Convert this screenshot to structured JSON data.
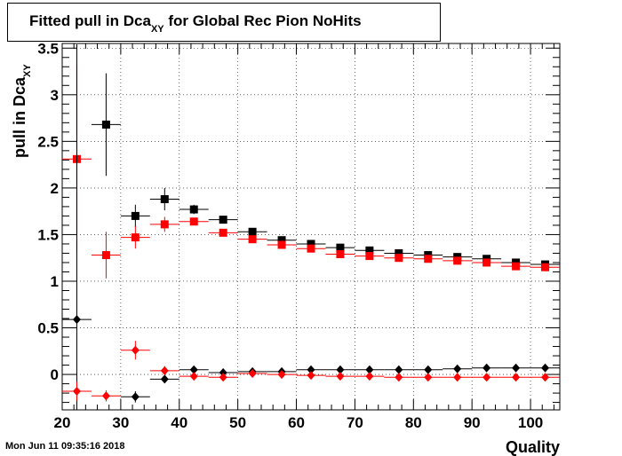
{
  "title": {
    "main": "Fitted pull in Dca",
    "sub": "XY",
    "rest": " for Global Rec Pion NoHits"
  },
  "timestamp": "Mon Jun 11 09:35:16 2018",
  "chart_data": {
    "type": "scatter",
    "title": "Fitted pull in Dca_XY for Global Rec Pion NoHits",
    "xlabel": "Quality",
    "ylabel_main": "pull in Dca",
    "ylabel_sub": "XY",
    "xlim": [
      20,
      105
    ],
    "ylim": [
      -0.38,
      3.55
    ],
    "x_ticks": [
      20,
      30,
      40,
      50,
      60,
      70,
      80,
      90,
      100
    ],
    "y_ticks": [
      0,
      0.5,
      1,
      1.5,
      2,
      2.5,
      3,
      3.5
    ],
    "y_tick_labels": [
      "0",
      "0.5",
      "1",
      "1.5",
      "2",
      "2.5",
      "3",
      "3.5"
    ],
    "grid": true,
    "bin_halfwidth": 2.5,
    "series": [
      {
        "color": "#000000",
        "marker": "square",
        "x": [
          27.5,
          32.5,
          37.5,
          42.5,
          47.5,
          52.5,
          57.5,
          62.5,
          67.5,
          72.5,
          77.5,
          82.5,
          87.5,
          92.5,
          97.5,
          102.5
        ],
        "y": [
          2.68,
          1.7,
          1.88,
          1.77,
          1.66,
          1.53,
          1.44,
          1.4,
          1.36,
          1.33,
          1.3,
          1.28,
          1.26,
          1.24,
          1.2,
          1.18
        ],
        "err": [
          0.55,
          0.12,
          0.12,
          0.05,
          0.04,
          0.03,
          0.03,
          0.02,
          0.02,
          0.02,
          0.02,
          0.02,
          0.02,
          0.02,
          0.02,
          0.02
        ]
      },
      {
        "color": "#ff0000",
        "marker": "square",
        "x": [
          22.5,
          27.5,
          32.5,
          37.5,
          42.5,
          47.5,
          52.5,
          57.5,
          62.5,
          67.5,
          72.5,
          77.5,
          82.5,
          87.5,
          92.5,
          97.5,
          102.5
        ],
        "y": [
          2.31,
          1.28,
          1.47,
          1.61,
          1.64,
          1.52,
          1.45,
          1.39,
          1.35,
          1.29,
          1.27,
          1.25,
          1.24,
          1.22,
          1.2,
          1.16,
          1.15
        ],
        "err": [
          1.0,
          0.25,
          0.12,
          0.08,
          0.04,
          0.03,
          0.03,
          0.02,
          0.02,
          0.02,
          0.02,
          0.02,
          0.02,
          0.02,
          0.02,
          0.02,
          0.02
        ]
      },
      {
        "color": "#000000",
        "marker": "diamond",
        "x": [
          22.5,
          32.5,
          37.5,
          42.5,
          47.5,
          52.5,
          57.5,
          62.5,
          67.5,
          72.5,
          77.5,
          82.5,
          87.5,
          92.5,
          97.5,
          102.5
        ],
        "y": [
          0.59,
          -0.24,
          -0.05,
          0.05,
          0.02,
          0.03,
          0.03,
          0.05,
          0.05,
          0.05,
          0.05,
          0.05,
          0.06,
          0.07,
          0.07,
          0.07
        ],
        "err": [
          2.95,
          0.06,
          0.04,
          0.02,
          0.02,
          0.01,
          0.01,
          0.01,
          0.01,
          0.01,
          0.01,
          0.01,
          0.01,
          0.01,
          0.01,
          0.01
        ]
      },
      {
        "color": "#ff0000",
        "marker": "diamond",
        "x": [
          22.5,
          27.5,
          32.5,
          37.5,
          42.5,
          47.5,
          52.5,
          57.5,
          62.5,
          67.5,
          72.5,
          77.5,
          82.5,
          87.5,
          92.5,
          97.5,
          102.5
        ],
        "y": [
          -0.18,
          -0.23,
          0.26,
          0.04,
          -0.02,
          -0.03,
          0.01,
          0.0,
          -0.01,
          -0.02,
          -0.02,
          -0.03,
          -0.03,
          -0.03,
          -0.03,
          -0.03,
          -0.03
        ],
        "err": [
          0.1,
          0.06,
          0.1,
          0.05,
          0.02,
          0.02,
          0.01,
          0.01,
          0.01,
          0.01,
          0.01,
          0.01,
          0.01,
          0.01,
          0.01,
          0.01,
          0.01
        ]
      }
    ]
  }
}
